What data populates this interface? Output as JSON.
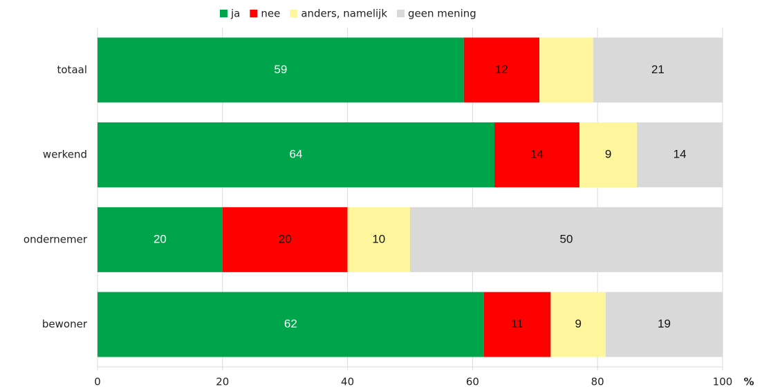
{
  "chart_data": {
    "type": "stacked_barh",
    "categories": [
      "totaal",
      "werkend",
      "ondernemer",
      "bewoner"
    ],
    "series": [
      {
        "name": "ja",
        "color": "#00a44a",
        "values": [
          58.6,
          63.5,
          20,
          61.8
        ],
        "value_labels": [
          "59",
          "64",
          "20",
          "62"
        ]
      },
      {
        "name": "nee",
        "color": "#ff0000",
        "values": [
          12.1,
          13.6,
          20,
          10.7
        ],
        "value_labels": [
          "12",
          "14",
          "20",
          "11"
        ]
      },
      {
        "name": "anders, namelijk",
        "color": "#fff59d",
        "values": [
          8.6,
          9.2,
          10,
          8.8
        ],
        "value_labels": [
          null,
          "9",
          "10",
          "9"
        ]
      },
      {
        "name": "geen mening",
        "color": "#d9d9d9",
        "values": [
          20.7,
          13.7,
          50,
          18.7
        ],
        "value_labels": [
          "21",
          "14",
          "50",
          "19"
        ]
      }
    ],
    "xlim": [
      0,
      100
    ],
    "xticks": [
      0,
      20,
      40,
      60,
      80,
      100
    ],
    "x_unit": "%",
    "grid": true,
    "legend": "top"
  }
}
